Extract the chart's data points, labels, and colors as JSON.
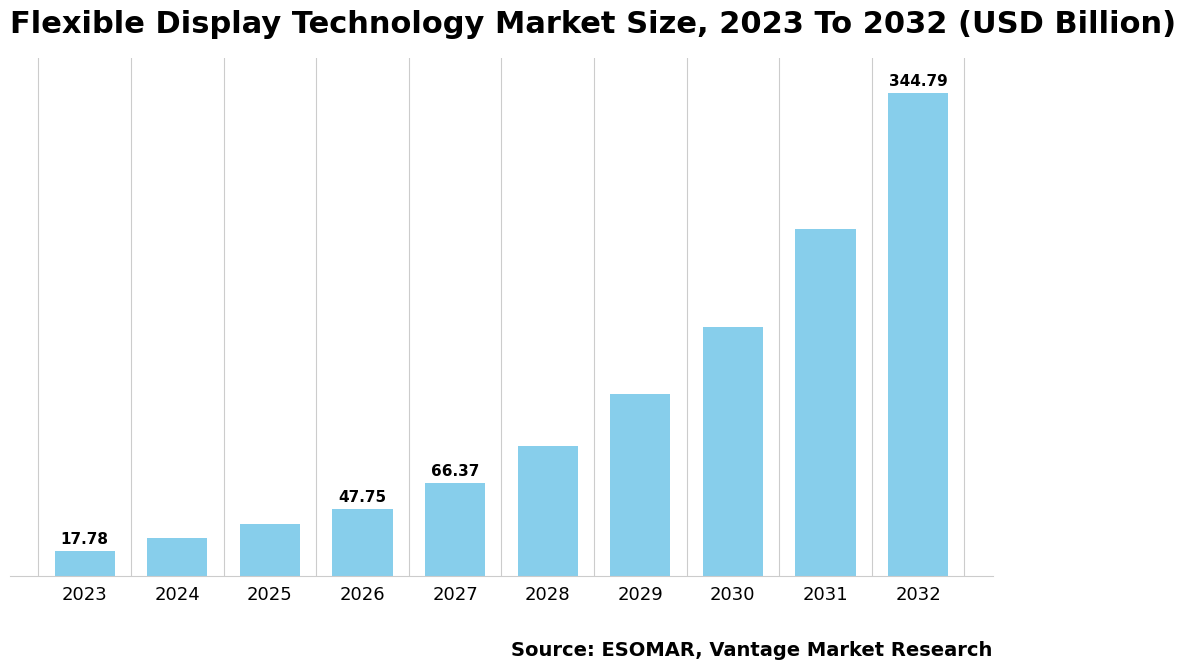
{
  "title": "Flexible Display Technology Market Size, 2023 To 2032 (USD Billion)",
  "years": [
    "2023",
    "2024",
    "2025",
    "2026",
    "2027",
    "2028",
    "2029",
    "2030",
    "2031",
    "2032"
  ],
  "values": [
    17.78,
    27.5,
    37.0,
    47.75,
    66.37,
    93.0,
    130.0,
    178.0,
    248.0,
    344.79
  ],
  "bar_color": "#87CEEB",
  "label_values": [
    17.78,
    null,
    null,
    47.75,
    66.37,
    null,
    null,
    null,
    null,
    344.79
  ],
  "source_text": "Source: ESOMAR, Vantage Market Research",
  "ylim": [
    0,
    370
  ],
  "background_color": "#ffffff",
  "title_fontsize": 22,
  "tick_fontsize": 13,
  "label_fontsize": 11,
  "source_fontsize": 14
}
